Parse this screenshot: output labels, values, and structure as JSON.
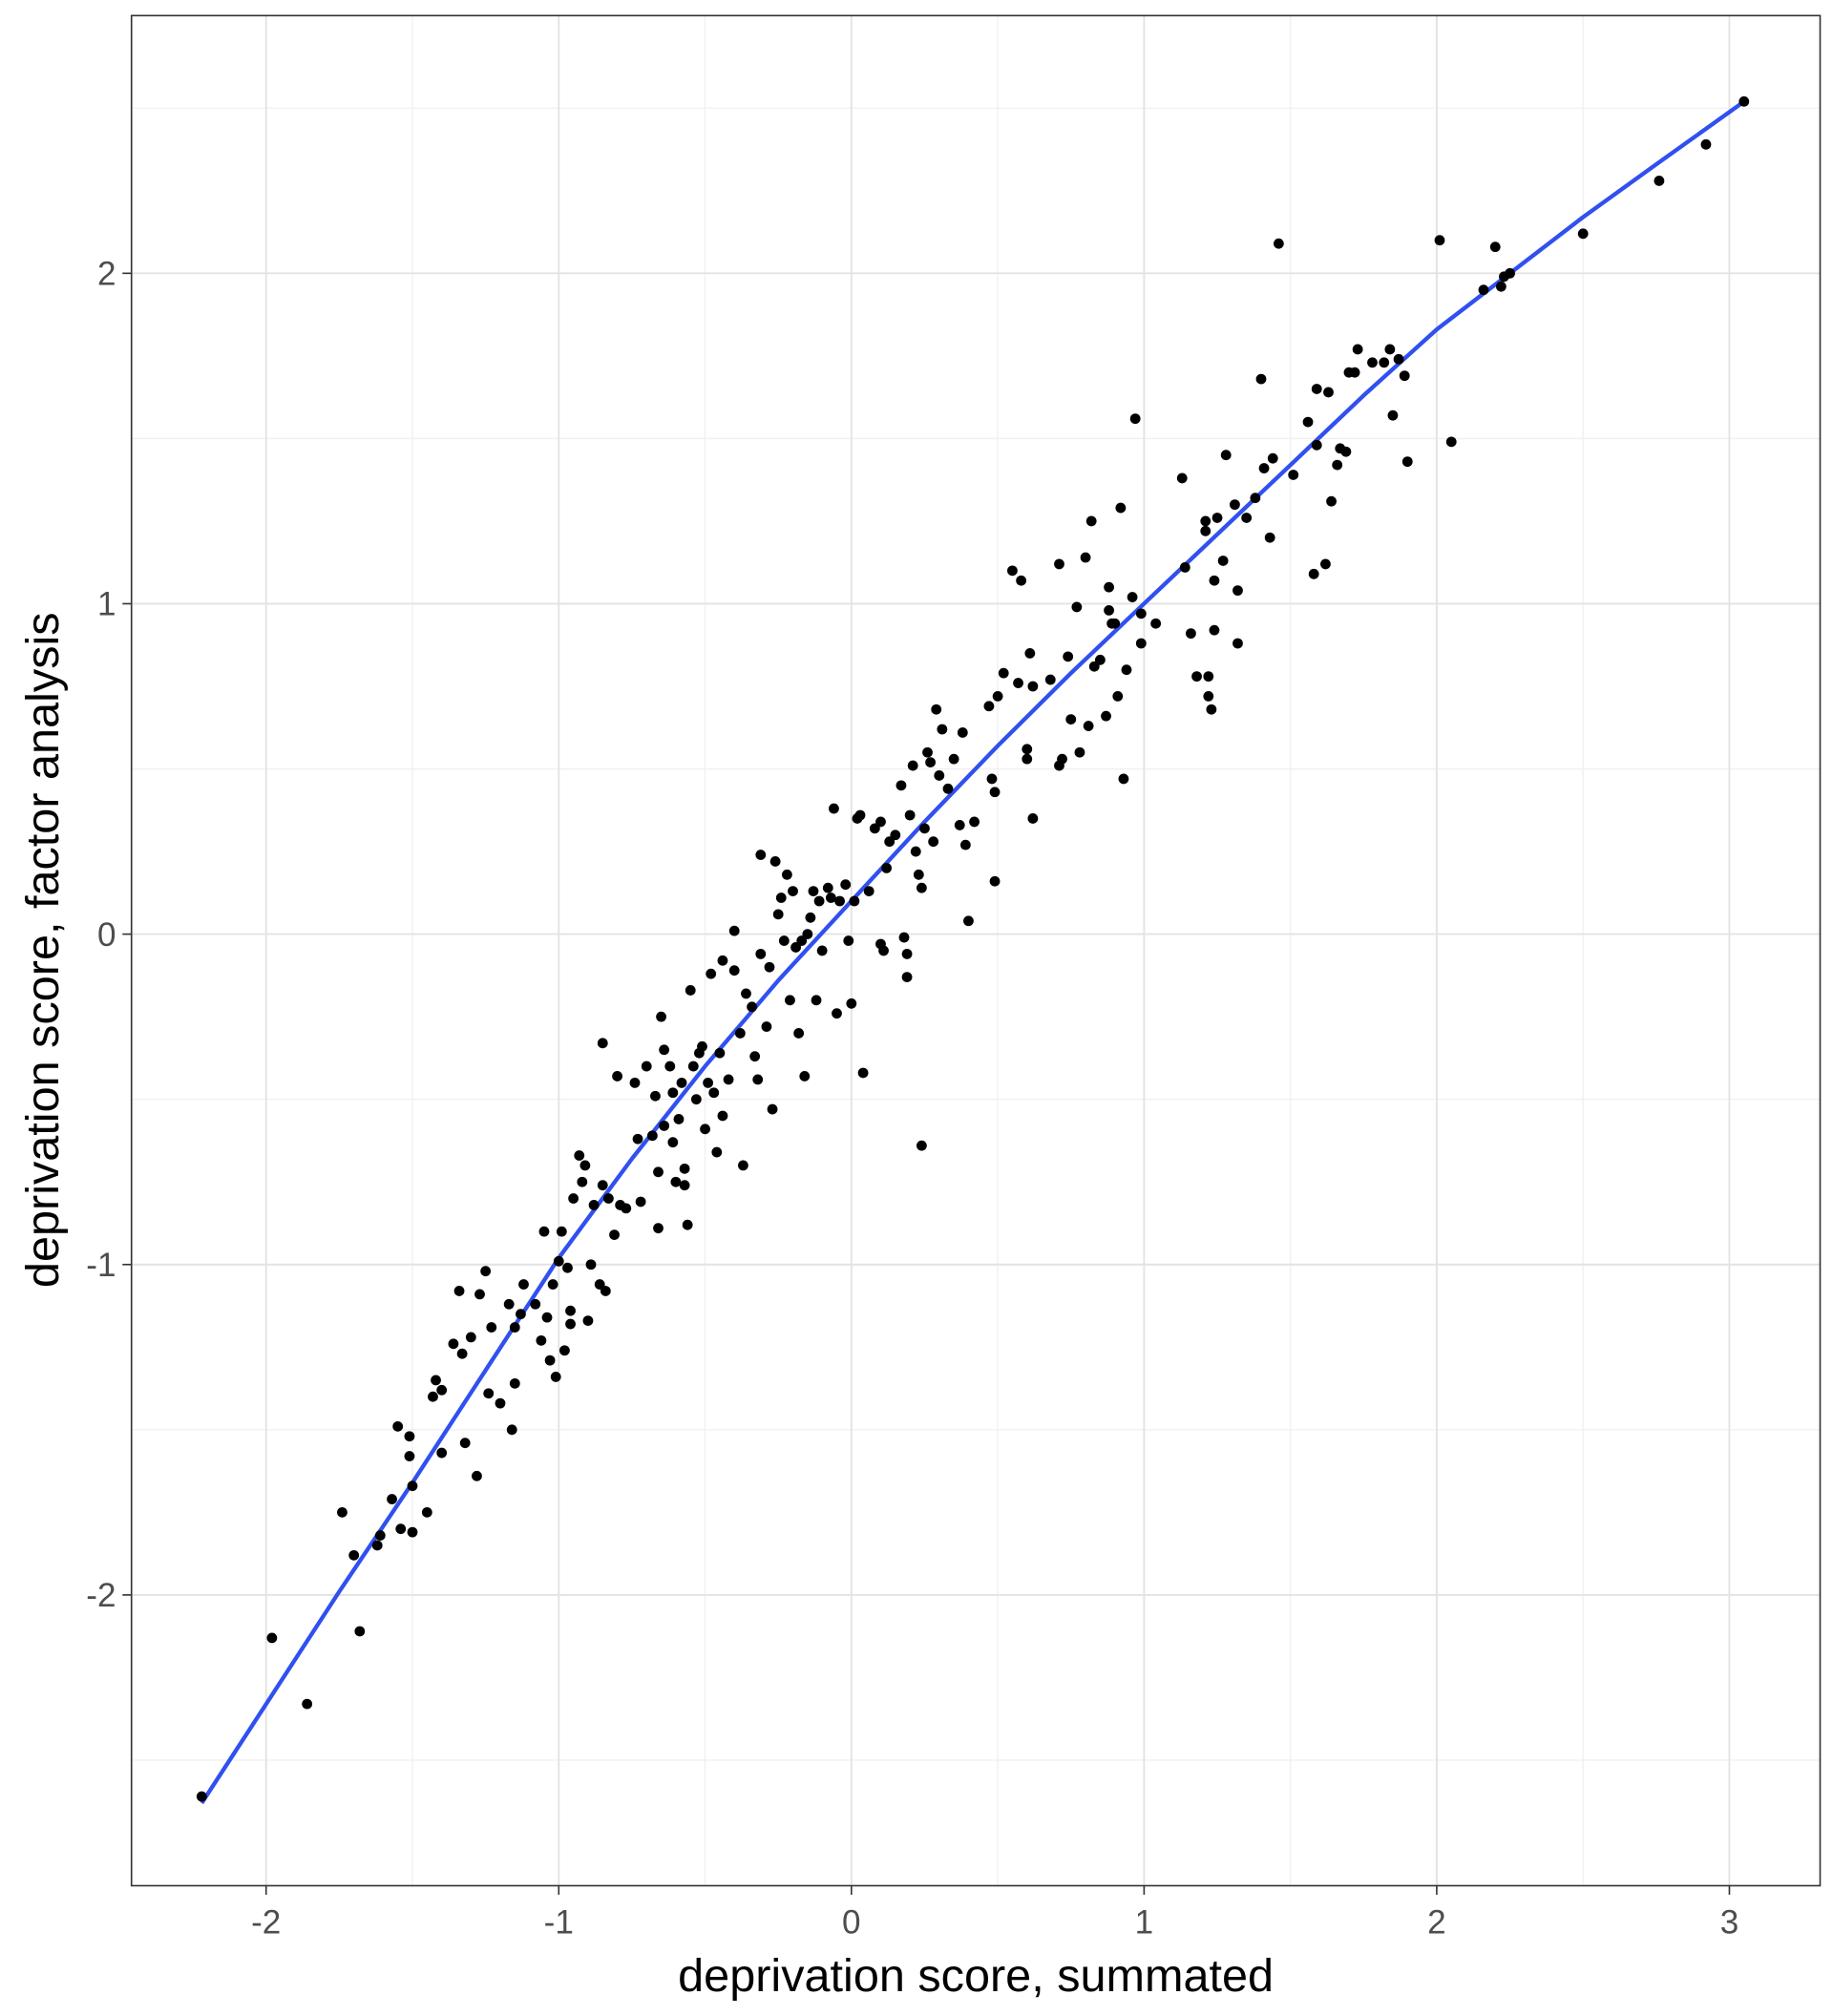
{
  "chart_data": {
    "type": "scatter",
    "title": "",
    "xlabel": "deprivation score, summated",
    "ylabel": "deprivation score, factor analysis",
    "xlim": [
      -2.46,
      3.31
    ],
    "ylim": [
      -2.88,
      2.78
    ],
    "x_ticks": [
      -2,
      -1,
      0,
      1,
      2,
      3
    ],
    "x_tick_labels": [
      "-2",
      "-1",
      "0",
      "1",
      "2",
      "3"
    ],
    "y_ticks": [
      -2,
      -1,
      0,
      1,
      2
    ],
    "y_tick_labels": [
      "-2",
      "-1",
      "0",
      "1",
      "2"
    ],
    "grid": true,
    "point_color": "#000000",
    "smooth_color": "#3050f0",
    "points": [
      [
        -2.22,
        -2.61
      ],
      [
        -1.98,
        -2.13
      ],
      [
        -1.86,
        -2.33
      ],
      [
        -1.74,
        -1.75
      ],
      [
        -1.7,
        -1.88
      ],
      [
        -1.68,
        -2.11
      ],
      [
        -1.62,
        -1.85
      ],
      [
        -1.61,
        -1.82
      ],
      [
        -1.57,
        -1.71
      ],
      [
        -1.55,
        -1.49
      ],
      [
        -1.54,
        -1.8
      ],
      [
        -1.51,
        -1.52
      ],
      [
        -1.51,
        -1.58
      ],
      [
        -1.5,
        -1.67
      ],
      [
        -1.5,
        -1.81
      ],
      [
        -1.45,
        -1.75
      ],
      [
        -1.43,
        -1.4
      ],
      [
        -1.42,
        -1.35
      ],
      [
        -1.4,
        -1.38
      ],
      [
        -1.4,
        -1.57
      ],
      [
        -1.36,
        -1.24
      ],
      [
        -1.34,
        -1.08
      ],
      [
        -1.33,
        -1.27
      ],
      [
        -1.32,
        -1.54
      ],
      [
        -1.3,
        -1.22
      ],
      [
        -1.28,
        -1.64
      ],
      [
        -1.27,
        -1.09
      ],
      [
        -1.25,
        -1.02
      ],
      [
        -1.24,
        -1.39
      ],
      [
        -1.23,
        -1.19
      ],
      [
        -1.2,
        -1.42
      ],
      [
        -1.17,
        -1.12
      ],
      [
        -1.16,
        -1.5
      ],
      [
        -1.15,
        -1.36
      ],
      [
        -1.15,
        -1.19
      ],
      [
        -1.13,
        -1.15
      ],
      [
        -1.12,
        -1.06
      ],
      [
        -1.08,
        -1.12
      ],
      [
        -1.06,
        -1.23
      ],
      [
        -1.05,
        -0.9
      ],
      [
        -1.04,
        -1.16
      ],
      [
        -1.03,
        -1.29
      ],
      [
        -1.02,
        -1.06
      ],
      [
        -1.01,
        -1.34
      ],
      [
        -1.0,
        -0.99
      ],
      [
        -0.99,
        -0.9
      ],
      [
        -0.98,
        -1.26
      ],
      [
        -0.97,
        -1.01
      ],
      [
        -0.96,
        -1.14
      ],
      [
        -0.96,
        -1.18
      ],
      [
        -0.95,
        -0.8
      ],
      [
        -0.93,
        -0.67
      ],
      [
        -0.92,
        -0.75
      ],
      [
        -0.91,
        -0.7
      ],
      [
        -0.9,
        -1.17
      ],
      [
        -0.89,
        -1.0
      ],
      [
        -0.88,
        -0.82
      ],
      [
        -0.86,
        -1.06
      ],
      [
        -0.85,
        -0.76
      ],
      [
        -0.84,
        -1.08
      ],
      [
        -0.85,
        -0.33
      ],
      [
        -0.83,
        -0.8
      ],
      [
        -0.81,
        -0.91
      ],
      [
        -0.8,
        -0.43
      ],
      [
        -0.79,
        -0.82
      ],
      [
        -0.77,
        -0.83
      ],
      [
        -0.74,
        -0.45
      ],
      [
        -0.73,
        -0.62
      ],
      [
        -0.72,
        -0.81
      ],
      [
        -0.7,
        -0.4
      ],
      [
        -0.68,
        -0.61
      ],
      [
        -0.67,
        -0.49
      ],
      [
        -0.66,
        -0.72
      ],
      [
        -0.66,
        -0.89
      ],
      [
        -0.65,
        -0.25
      ],
      [
        -0.64,
        -0.35
      ],
      [
        -0.64,
        -0.58
      ],
      [
        -0.62,
        -0.4
      ],
      [
        -0.61,
        -0.48
      ],
      [
        -0.61,
        -0.63
      ],
      [
        -0.6,
        -0.75
      ],
      [
        -0.59,
        -0.56
      ],
      [
        -0.58,
        -0.45
      ],
      [
        -0.57,
        -0.71
      ],
      [
        -0.57,
        -0.76
      ],
      [
        -0.56,
        -0.88
      ],
      [
        -0.55,
        -0.17
      ],
      [
        -0.54,
        -0.4
      ],
      [
        -0.53,
        -0.5
      ],
      [
        -0.52,
        -0.36
      ],
      [
        -0.51,
        -0.34
      ],
      [
        -0.5,
        -0.59
      ],
      [
        -0.49,
        -0.45
      ],
      [
        -0.48,
        -0.12
      ],
      [
        -0.47,
        -0.48
      ],
      [
        -0.46,
        -0.66
      ],
      [
        -0.45,
        -0.36
      ],
      [
        -0.44,
        -0.55
      ],
      [
        -0.44,
        -0.08
      ],
      [
        -0.42,
        -0.44
      ],
      [
        -0.4,
        0.01
      ],
      [
        -0.4,
        -0.11
      ],
      [
        -0.38,
        -0.3
      ],
      [
        -0.37,
        -0.7
      ],
      [
        -0.36,
        -0.18
      ],
      [
        -0.34,
        -0.22
      ],
      [
        -0.33,
        -0.37
      ],
      [
        -0.32,
        -0.44
      ],
      [
        -0.31,
        -0.06
      ],
      [
        -0.31,
        0.24
      ],
      [
        -0.29,
        -0.28
      ],
      [
        -0.28,
        -0.1
      ],
      [
        -0.27,
        -0.53
      ],
      [
        -0.26,
        0.22
      ],
      [
        -0.25,
        0.06
      ],
      [
        -0.24,
        0.11
      ],
      [
        -0.23,
        -0.02
      ],
      [
        -0.22,
        0.18
      ],
      [
        -0.21,
        -0.2
      ],
      [
        -0.2,
        0.13
      ],
      [
        -0.19,
        -0.04
      ],
      [
        -0.18,
        -0.3
      ],
      [
        -0.17,
        -0.02
      ],
      [
        -0.16,
        -0.43
      ],
      [
        -0.15,
        0.0
      ],
      [
        -0.14,
        0.05
      ],
      [
        -0.13,
        0.13
      ],
      [
        -0.12,
        -0.2
      ],
      [
        -0.11,
        0.1
      ],
      [
        -0.1,
        -0.05
      ],
      [
        -0.08,
        0.14
      ],
      [
        -0.07,
        0.11
      ],
      [
        -0.06,
        0.38
      ],
      [
        -0.05,
        -0.24
      ],
      [
        -0.04,
        0.1
      ],
      [
        -0.02,
        0.15
      ],
      [
        -0.01,
        -0.02
      ],
      [
        0.0,
        -0.21
      ],
      [
        0.01,
        0.1
      ],
      [
        0.02,
        0.35
      ],
      [
        0.03,
        0.36
      ],
      [
        0.04,
        -0.42
      ],
      [
        0.06,
        0.13
      ],
      [
        0.08,
        0.32
      ],
      [
        0.1,
        0.34
      ],
      [
        0.1,
        -0.03
      ],
      [
        0.11,
        -0.05
      ],
      [
        0.12,
        0.2
      ],
      [
        0.13,
        0.28
      ],
      [
        0.15,
        0.3
      ],
      [
        0.17,
        0.45
      ],
      [
        0.18,
        -0.01
      ],
      [
        0.19,
        -0.13
      ],
      [
        0.19,
        -0.06
      ],
      [
        0.2,
        0.36
      ],
      [
        0.21,
        0.51
      ],
      [
        0.22,
        0.25
      ],
      [
        0.23,
        0.18
      ],
      [
        0.24,
        0.14
      ],
      [
        0.24,
        -0.64
      ],
      [
        0.25,
        0.32
      ],
      [
        0.26,
        0.55
      ],
      [
        0.27,
        0.52
      ],
      [
        0.28,
        0.28
      ],
      [
        0.29,
        0.68
      ],
      [
        0.3,
        0.48
      ],
      [
        0.31,
        0.62
      ],
      [
        0.33,
        0.44
      ],
      [
        0.35,
        0.53
      ],
      [
        0.37,
        0.33
      ],
      [
        0.38,
        0.61
      ],
      [
        0.39,
        0.27
      ],
      [
        0.4,
        0.04
      ],
      [
        0.42,
        0.34
      ],
      [
        0.47,
        0.69
      ],
      [
        0.48,
        0.47
      ],
      [
        0.49,
        0.43
      ],
      [
        0.49,
        0.16
      ],
      [
        0.5,
        0.72
      ],
      [
        0.52,
        0.79
      ],
      [
        0.55,
        1.1
      ],
      [
        0.57,
        0.76
      ],
      [
        0.58,
        1.07
      ],
      [
        0.6,
        0.53
      ],
      [
        0.6,
        0.56
      ],
      [
        0.61,
        0.85
      ],
      [
        0.62,
        0.75
      ],
      [
        0.62,
        0.35
      ],
      [
        0.68,
        0.77
      ],
      [
        0.71,
        1.12
      ],
      [
        0.71,
        0.51
      ],
      [
        0.72,
        0.53
      ],
      [
        0.74,
        0.84
      ],
      [
        0.75,
        0.65
      ],
      [
        0.77,
        0.99
      ],
      [
        0.78,
        0.55
      ],
      [
        0.8,
        1.14
      ],
      [
        0.81,
        0.63
      ],
      [
        0.82,
        1.25
      ],
      [
        0.83,
        0.81
      ],
      [
        0.85,
        0.83
      ],
      [
        0.87,
        0.66
      ],
      [
        0.88,
        0.98
      ],
      [
        0.88,
        1.05
      ],
      [
        0.89,
        0.94
      ],
      [
        0.9,
        0.94
      ],
      [
        0.91,
        0.72
      ],
      [
        0.92,
        1.29
      ],
      [
        0.93,
        0.47
      ],
      [
        0.94,
        0.8
      ],
      [
        0.96,
        1.02
      ],
      [
        0.97,
        1.56
      ],
      [
        0.99,
        0.88
      ],
      [
        0.99,
        0.97
      ],
      [
        1.04,
        0.94
      ],
      [
        1.13,
        1.38
      ],
      [
        1.14,
        1.11
      ],
      [
        1.16,
        0.91
      ],
      [
        1.18,
        0.78
      ],
      [
        1.21,
        1.22
      ],
      [
        1.21,
        1.25
      ],
      [
        1.22,
        0.78
      ],
      [
        1.22,
        0.72
      ],
      [
        1.23,
        0.68
      ],
      [
        1.24,
        1.07
      ],
      [
        1.24,
        0.92
      ],
      [
        1.25,
        1.26
      ],
      [
        1.27,
        1.13
      ],
      [
        1.28,
        1.45
      ],
      [
        1.31,
        1.3
      ],
      [
        1.32,
        1.04
      ],
      [
        1.32,
        0.88
      ],
      [
        1.35,
        1.26
      ],
      [
        1.38,
        1.32
      ],
      [
        1.4,
        1.68
      ],
      [
        1.41,
        1.41
      ],
      [
        1.43,
        1.2
      ],
      [
        1.44,
        1.44
      ],
      [
        1.46,
        2.09
      ],
      [
        1.51,
        1.39
      ],
      [
        1.56,
        1.55
      ],
      [
        1.58,
        1.09
      ],
      [
        1.59,
        1.48
      ],
      [
        1.59,
        1.65
      ],
      [
        1.62,
        1.12
      ],
      [
        1.63,
        1.64
      ],
      [
        1.64,
        1.31
      ],
      [
        1.66,
        1.42
      ],
      [
        1.67,
        1.47
      ],
      [
        1.69,
        1.46
      ],
      [
        1.7,
        1.7
      ],
      [
        1.72,
        1.7
      ],
      [
        1.73,
        1.77
      ],
      [
        1.78,
        1.73
      ],
      [
        1.82,
        1.73
      ],
      [
        1.84,
        1.77
      ],
      [
        1.85,
        1.57
      ],
      [
        1.87,
        1.74
      ],
      [
        1.89,
        1.69
      ],
      [
        1.9,
        1.43
      ],
      [
        2.01,
        2.1
      ],
      [
        2.05,
        1.49
      ],
      [
        2.16,
        1.95
      ],
      [
        2.2,
        2.08
      ],
      [
        2.22,
        1.96
      ],
      [
        2.23,
        1.99
      ],
      [
        2.25,
        2.0
      ],
      [
        2.5,
        2.12
      ],
      [
        2.76,
        2.28
      ],
      [
        2.92,
        2.39
      ],
      [
        3.05,
        2.52
      ]
    ],
    "smooth_line": [
      [
        -2.22,
        -2.63
      ],
      [
        -1.75,
        -1.99
      ],
      [
        -1.5,
        -1.66
      ],
      [
        -1.25,
        -1.32
      ],
      [
        -1,
        -0.98
      ],
      [
        -0.75,
        -0.68
      ],
      [
        -0.5,
        -0.4
      ],
      [
        -0.25,
        -0.14
      ],
      [
        0,
        0.1
      ],
      [
        0.25,
        0.34
      ],
      [
        0.5,
        0.57
      ],
      [
        0.75,
        0.79
      ],
      [
        1,
        1.0
      ],
      [
        1.25,
        1.21
      ],
      [
        1.5,
        1.42
      ],
      [
        1.75,
        1.63
      ],
      [
        2,
        1.83
      ],
      [
        2.25,
        2.0
      ],
      [
        2.5,
        2.17
      ],
      [
        2.75,
        2.33
      ],
      [
        3.05,
        2.52
      ]
    ]
  }
}
